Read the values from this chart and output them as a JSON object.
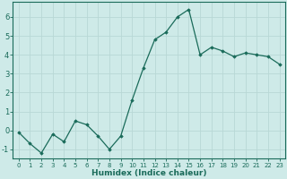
{
  "x": [
    0,
    1,
    2,
    3,
    4,
    5,
    6,
    7,
    8,
    9,
    10,
    11,
    12,
    13,
    14,
    15,
    16,
    17,
    18,
    19,
    20,
    21,
    22,
    23
  ],
  "y": [
    -0.1,
    -0.7,
    -1.2,
    -0.2,
    -0.6,
    0.5,
    0.3,
    -0.3,
    -1.0,
    -0.3,
    1.6,
    3.3,
    4.8,
    5.2,
    6.0,
    6.4,
    4.0,
    4.4,
    4.2,
    3.9,
    4.1,
    4.0,
    3.9,
    3.5
  ],
  "line_color": "#1a6b5a",
  "marker_color": "#1a6b5a",
  "bg_color": "#ceeae8",
  "grid_color_major": "#b8d8d5",
  "grid_color_minor": "#dff0ee",
  "axis_label": "Humidex (Indice chaleur)",
  "tick_color": "#1a6b5a",
  "ylim": [
    -1.5,
    6.8
  ],
  "xlim": [
    -0.5,
    23.5
  ],
  "yticks": [
    -1,
    0,
    1,
    2,
    3,
    4,
    5,
    6
  ],
  "xticks": [
    0,
    1,
    2,
    3,
    4,
    5,
    6,
    7,
    8,
    9,
    10,
    11,
    12,
    13,
    14,
    15,
    16,
    17,
    18,
    19,
    20,
    21,
    22,
    23
  ],
  "tick_fontsize": 5.0,
  "ytick_fontsize": 6.0,
  "xlabel_fontsize": 6.5
}
